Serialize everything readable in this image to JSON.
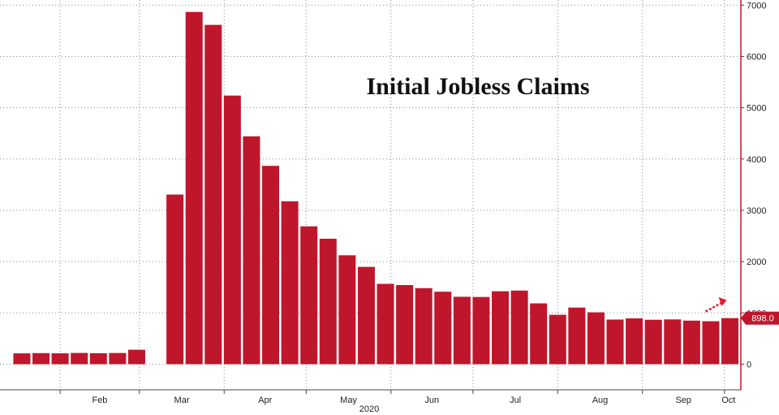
{
  "chart_data": {
    "type": "bar",
    "title": "Initial Jobless Claims",
    "xlabel": "",
    "ylabel": "",
    "ylim": [
      -500,
      7100
    ],
    "y_ticks": [
      0,
      1000,
      2000,
      3000,
      4000,
      5000,
      6000,
      7000
    ],
    "y_axis_side": "right",
    "grid": true,
    "x_ticks": [
      "Feb",
      "Mar",
      "Apr",
      "May",
      "Jun",
      "Jul",
      "Aug",
      "Sep",
      "Oct"
    ],
    "x_year_label": "2020",
    "bar_color": "#c0162c",
    "last_value_label": "898.0",
    "bars": [
      {
        "week": "2020-01-18",
        "value": 211
      },
      {
        "week": "2020-01-25",
        "value": 216
      },
      {
        "week": "2020-02-01",
        "value": 212
      },
      {
        "week": "2020-02-08",
        "value": 219
      },
      {
        "week": "2020-02-15",
        "value": 214
      },
      {
        "week": "2020-02-22",
        "value": 218
      },
      {
        "week": "2020-02-29",
        "value": 282
      },
      {
        "week": "2020-03-14",
        "value": 3307
      },
      {
        "week": "2020-03-21",
        "value": 6867
      },
      {
        "week": "2020-03-28",
        "value": 6615
      },
      {
        "week": "2020-04-04",
        "value": 5237
      },
      {
        "week": "2020-04-11",
        "value": 4442
      },
      {
        "week": "2020-04-18",
        "value": 3867
      },
      {
        "week": "2020-04-25",
        "value": 3176
      },
      {
        "week": "2020-05-02",
        "value": 2687
      },
      {
        "week": "2020-05-09",
        "value": 2446
      },
      {
        "week": "2020-05-16",
        "value": 2123
      },
      {
        "week": "2020-05-23",
        "value": 1897
      },
      {
        "week": "2020-05-30",
        "value": 1566
      },
      {
        "week": "2020-06-06",
        "value": 1542
      },
      {
        "week": "2020-06-13",
        "value": 1482
      },
      {
        "week": "2020-06-20",
        "value": 1413
      },
      {
        "week": "2020-06-27",
        "value": 1314
      },
      {
        "week": "2020-07-04",
        "value": 1310
      },
      {
        "week": "2020-07-11",
        "value": 1422
      },
      {
        "week": "2020-07-18",
        "value": 1435
      },
      {
        "week": "2020-07-25",
        "value": 1186
      },
      {
        "week": "2020-08-01",
        "value": 963
      },
      {
        "week": "2020-08-08",
        "value": 1104
      },
      {
        "week": "2020-08-15",
        "value": 1011
      },
      {
        "week": "2020-08-22",
        "value": 870
      },
      {
        "week": "2020-08-29",
        "value": 893
      },
      {
        "week": "2020-09-05",
        "value": 866
      },
      {
        "week": "2020-09-12",
        "value": 873
      },
      {
        "week": "2020-09-19",
        "value": 849
      },
      {
        "week": "2020-09-26",
        "value": 837
      },
      {
        "week": "2020-10-03",
        "value": 898
      }
    ]
  }
}
